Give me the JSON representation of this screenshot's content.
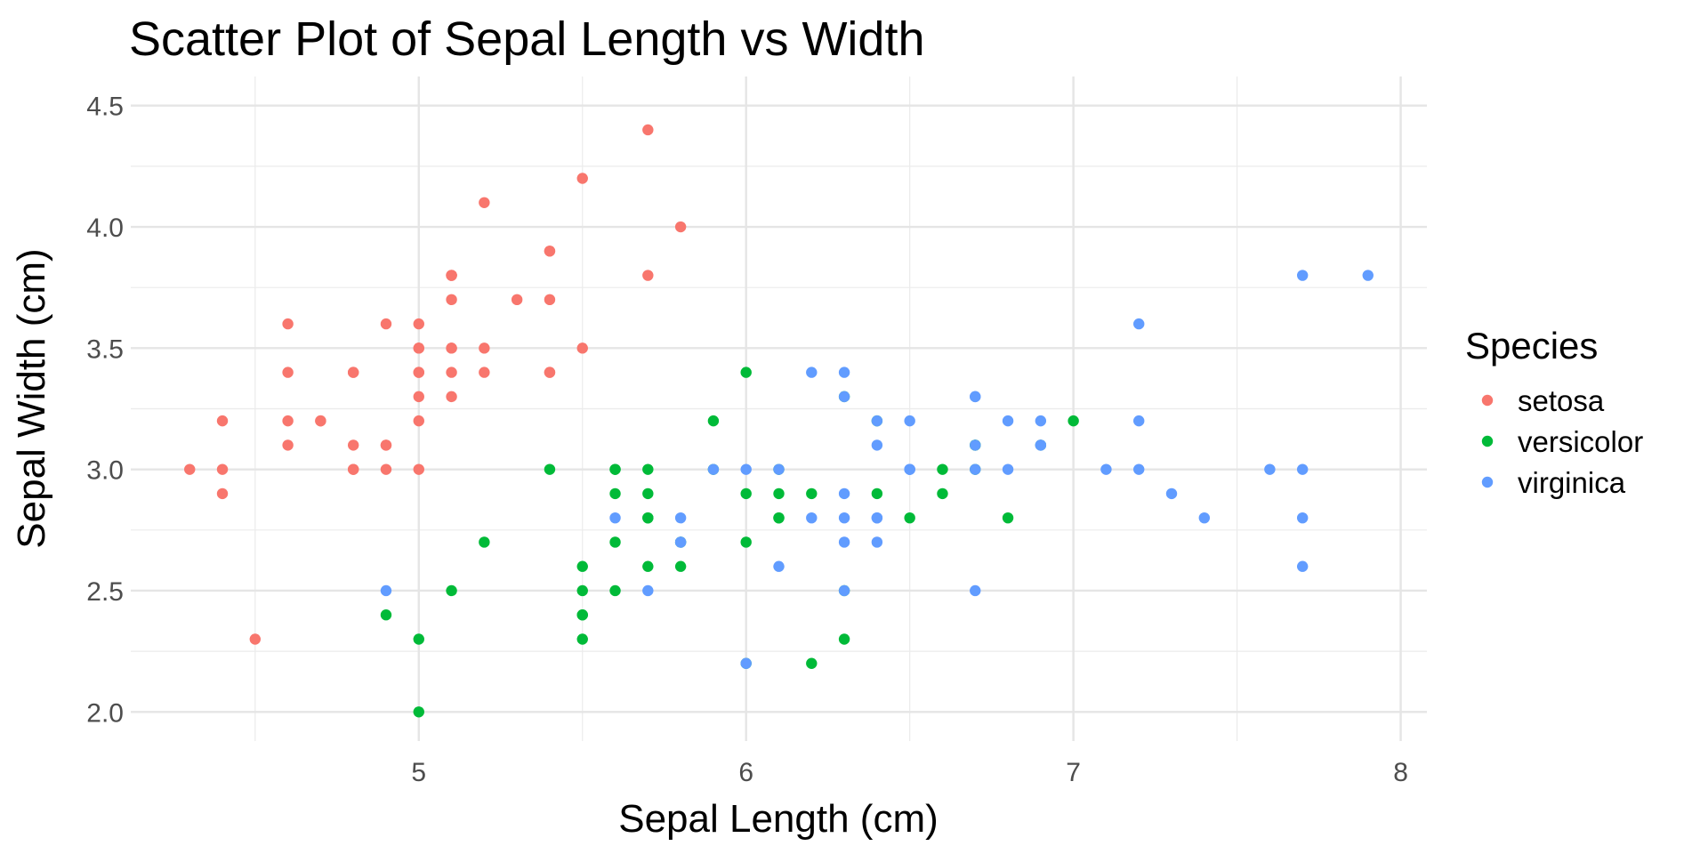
{
  "chart_data": {
    "type": "scatter",
    "title": "Scatter Plot of Sepal Length vs Width",
    "xlabel": "Sepal Length (cm)",
    "ylabel": "Sepal Width (cm)",
    "xlim": [
      4.12,
      8.08
    ],
    "ylim": [
      1.88,
      4.62
    ],
    "x_ticks": [
      5,
      6,
      7,
      8
    ],
    "y_ticks": [
      "2.0",
      "2.5",
      "3.0",
      "3.5",
      "4.0",
      "4.5"
    ],
    "grid": true,
    "legend": {
      "title": "Species",
      "position": "right"
    },
    "series": [
      {
        "name": "setosa",
        "color": "#F8766D",
        "points": [
          [
            5.1,
            3.5
          ],
          [
            4.9,
            3.0
          ],
          [
            4.7,
            3.2
          ],
          [
            4.6,
            3.1
          ],
          [
            5.0,
            3.6
          ],
          [
            5.4,
            3.9
          ],
          [
            4.6,
            3.4
          ],
          [
            5.0,
            3.4
          ],
          [
            4.4,
            2.9
          ],
          [
            4.9,
            3.1
          ],
          [
            5.4,
            3.7
          ],
          [
            4.8,
            3.4
          ],
          [
            4.8,
            3.0
          ],
          [
            4.3,
            3.0
          ],
          [
            5.8,
            4.0
          ],
          [
            5.7,
            4.4
          ],
          [
            5.4,
            3.9
          ],
          [
            5.1,
            3.5
          ],
          [
            5.7,
            3.8
          ],
          [
            5.1,
            3.8
          ],
          [
            5.4,
            3.4
          ],
          [
            5.1,
            3.7
          ],
          [
            4.6,
            3.6
          ],
          [
            5.1,
            3.3
          ],
          [
            4.8,
            3.4
          ],
          [
            5.0,
            3.0
          ],
          [
            5.0,
            3.4
          ],
          [
            5.2,
            3.5
          ],
          [
            5.2,
            3.4
          ],
          [
            4.7,
            3.2
          ],
          [
            4.8,
            3.1
          ],
          [
            5.4,
            3.4
          ],
          [
            5.2,
            4.1
          ],
          [
            5.5,
            4.2
          ],
          [
            4.9,
            3.1
          ],
          [
            5.0,
            3.2
          ],
          [
            5.5,
            3.5
          ],
          [
            4.9,
            3.6
          ],
          [
            4.4,
            3.0
          ],
          [
            5.1,
            3.4
          ],
          [
            5.0,
            3.5
          ],
          [
            4.5,
            2.3
          ],
          [
            4.4,
            3.2
          ],
          [
            5.0,
            3.5
          ],
          [
            5.1,
            3.8
          ],
          [
            4.8,
            3.0
          ],
          [
            5.1,
            3.8
          ],
          [
            4.6,
            3.2
          ],
          [
            5.3,
            3.7
          ],
          [
            5.0,
            3.3
          ]
        ]
      },
      {
        "name": "versicolor",
        "color": "#00BA38",
        "points": [
          [
            7.0,
            3.2
          ],
          [
            6.4,
            3.2
          ],
          [
            6.9,
            3.1
          ],
          [
            5.5,
            2.3
          ],
          [
            6.5,
            2.8
          ],
          [
            5.7,
            2.8
          ],
          [
            6.3,
            3.3
          ],
          [
            4.9,
            2.4
          ],
          [
            6.6,
            2.9
          ],
          [
            5.2,
            2.7
          ],
          [
            5.0,
            2.0
          ],
          [
            5.9,
            3.0
          ],
          [
            6.0,
            2.2
          ],
          [
            6.1,
            2.9
          ],
          [
            5.6,
            2.9
          ],
          [
            6.7,
            3.1
          ],
          [
            5.6,
            3.0
          ],
          [
            5.8,
            2.7
          ],
          [
            6.2,
            2.2
          ],
          [
            5.6,
            2.5
          ],
          [
            5.9,
            3.2
          ],
          [
            6.1,
            2.8
          ],
          [
            6.3,
            2.5
          ],
          [
            6.1,
            2.8
          ],
          [
            6.4,
            2.9
          ],
          [
            6.6,
            3.0
          ],
          [
            6.8,
            2.8
          ],
          [
            6.7,
            3.0
          ],
          [
            6.0,
            2.9
          ],
          [
            5.7,
            2.6
          ],
          [
            5.5,
            2.4
          ],
          [
            5.5,
            2.4
          ],
          [
            5.8,
            2.7
          ],
          [
            6.0,
            2.7
          ],
          [
            5.4,
            3.0
          ],
          [
            6.0,
            3.4
          ],
          [
            6.7,
            3.1
          ],
          [
            6.3,
            2.3
          ],
          [
            5.6,
            3.0
          ],
          [
            5.5,
            2.5
          ],
          [
            5.5,
            2.6
          ],
          [
            6.1,
            3.0
          ],
          [
            5.8,
            2.6
          ],
          [
            5.0,
            2.3
          ],
          [
            5.6,
            2.7
          ],
          [
            5.7,
            3.0
          ],
          [
            5.7,
            2.9
          ],
          [
            6.2,
            2.9
          ],
          [
            5.1,
            2.5
          ],
          [
            5.7,
            2.8
          ]
        ]
      },
      {
        "name": "virginica",
        "color": "#619CFF",
        "points": [
          [
            6.3,
            3.3
          ],
          [
            5.8,
            2.7
          ],
          [
            7.1,
            3.0
          ],
          [
            6.3,
            2.9
          ],
          [
            6.5,
            3.0
          ],
          [
            7.6,
            3.0
          ],
          [
            4.9,
            2.5
          ],
          [
            7.3,
            2.9
          ],
          [
            6.7,
            2.5
          ],
          [
            7.2,
            3.6
          ],
          [
            6.5,
            3.2
          ],
          [
            6.4,
            2.7
          ],
          [
            6.8,
            3.0
          ],
          [
            5.7,
            2.5
          ],
          [
            5.8,
            2.8
          ],
          [
            6.4,
            3.2
          ],
          [
            6.5,
            3.0
          ],
          [
            7.7,
            3.8
          ],
          [
            7.7,
            2.6
          ],
          [
            6.0,
            2.2
          ],
          [
            6.9,
            3.2
          ],
          [
            5.6,
            2.8
          ],
          [
            7.7,
            2.8
          ],
          [
            6.3,
            2.7
          ],
          [
            6.7,
            3.3
          ],
          [
            7.2,
            3.2
          ],
          [
            6.2,
            2.8
          ],
          [
            6.1,
            3.0
          ],
          [
            6.4,
            2.8
          ],
          [
            7.2,
            3.0
          ],
          [
            7.4,
            2.8
          ],
          [
            7.9,
            3.8
          ],
          [
            6.4,
            2.8
          ],
          [
            6.3,
            2.8
          ],
          [
            6.1,
            2.6
          ],
          [
            7.7,
            3.0
          ],
          [
            6.3,
            3.4
          ],
          [
            6.4,
            3.1
          ],
          [
            6.0,
            3.0
          ],
          [
            6.9,
            3.1
          ],
          [
            6.7,
            3.1
          ],
          [
            6.9,
            3.1
          ],
          [
            5.8,
            2.7
          ],
          [
            6.8,
            3.2
          ],
          [
            6.7,
            3.3
          ],
          [
            6.7,
            3.0
          ],
          [
            6.3,
            2.5
          ],
          [
            6.5,
            3.0
          ],
          [
            6.2,
            3.4
          ],
          [
            5.9,
            3.0
          ]
        ]
      }
    ]
  }
}
